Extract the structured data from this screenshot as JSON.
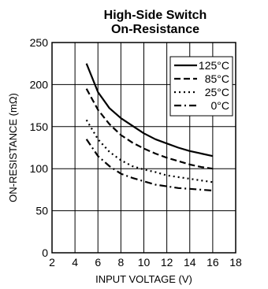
{
  "chart_data": {
    "type": "line",
    "title": [
      "High-Side Switch",
      "On-Resistance"
    ],
    "xlabel": "INPUT VOLTAGE (V)",
    "ylabel": "ON-RESISTANCE (mΩ)",
    "xlim": [
      2,
      18
    ],
    "ylim": [
      0,
      250
    ],
    "xticks": [
      2,
      4,
      6,
      8,
      10,
      12,
      14,
      16,
      18
    ],
    "yticks": [
      0,
      50,
      100,
      150,
      200,
      250
    ],
    "xtick_labels": [
      "2",
      "4",
      "6",
      "8",
      "10",
      "12",
      "14",
      "16",
      "18"
    ],
    "ytick_labels": [
      "0",
      "50",
      "100",
      "150",
      "200",
      "250"
    ],
    "grid": true,
    "legend_position": "top-right",
    "series": [
      {
        "name": "125°C",
        "style": "solid",
        "x": [
          5,
          6,
          7,
          8,
          9,
          10,
          11,
          12,
          13,
          14,
          15,
          16
        ],
        "y": [
          225,
          191,
          172,
          160,
          151,
          142,
          135,
          130,
          125,
          121,
          118,
          115
        ]
      },
      {
        "name": "85°C",
        "style": "dashed",
        "x": [
          5,
          6,
          7,
          8,
          9,
          10,
          11,
          12,
          13,
          14,
          15,
          16
        ],
        "y": [
          195,
          170,
          153,
          140,
          131,
          124,
          118,
          113,
          109,
          105,
          102,
          100
        ]
      },
      {
        "name": "25°C",
        "style": "dotted",
        "x": [
          5,
          6,
          7,
          8,
          9,
          10,
          11,
          12,
          13,
          14,
          15,
          16
        ],
        "y": [
          158,
          135,
          120,
          110,
          103,
          99,
          96,
          92,
          90,
          88,
          86,
          84
        ]
      },
      {
        "name": "0°C",
        "style": "dashdot",
        "x": [
          5,
          6,
          7,
          8,
          9,
          10,
          11,
          12,
          13,
          14,
          15,
          16
        ],
        "y": [
          135,
          115,
          103,
          94,
          89,
          85,
          81,
          79,
          77,
          76,
          75,
          74
        ]
      }
    ]
  }
}
